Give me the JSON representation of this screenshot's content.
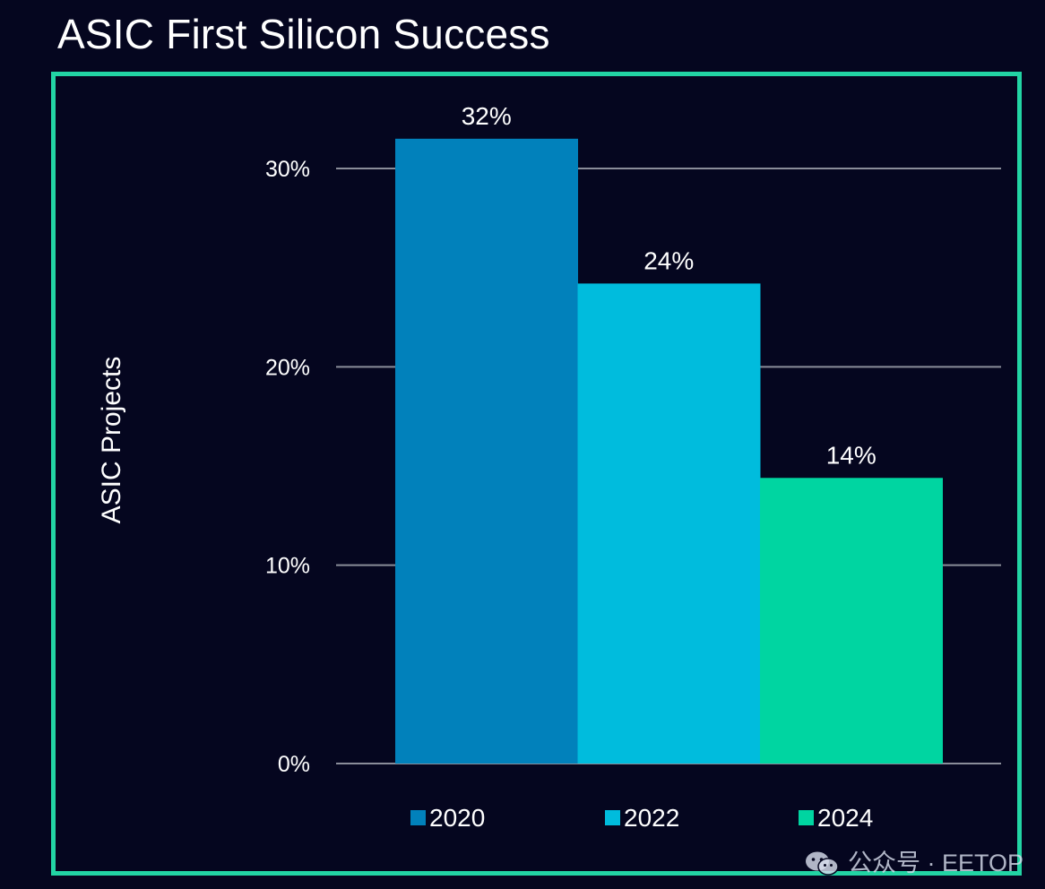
{
  "title": "ASIC First Silicon Success",
  "colors": {
    "background": "#05061f",
    "frame": "#22d4a4",
    "grid": "#8a8d99",
    "text": "#ffffff"
  },
  "watermark": {
    "text": "公众号 · EETOP",
    "icon": "wechat-icon"
  },
  "chart_data": {
    "type": "bar",
    "title": "ASIC First Silicon Success",
    "xlabel": "",
    "ylabel": "ASIC  Projects",
    "ylim": [
      0,
      30
    ],
    "yticks": [
      0,
      10,
      20,
      30
    ],
    "ytick_labels": [
      "0%",
      "10%",
      "20%",
      "30%"
    ],
    "grid": true,
    "legend_position": "bottom",
    "series": [
      {
        "name": "2020",
        "value": 31.5,
        "label": "32%",
        "color": "#0181bb"
      },
      {
        "name": "2022",
        "value": 24.2,
        "label": "24%",
        "color": "#00bcdd"
      },
      {
        "name": "2024",
        "value": 14.4,
        "label": "14%",
        "color": "#00d5a1"
      }
    ]
  }
}
